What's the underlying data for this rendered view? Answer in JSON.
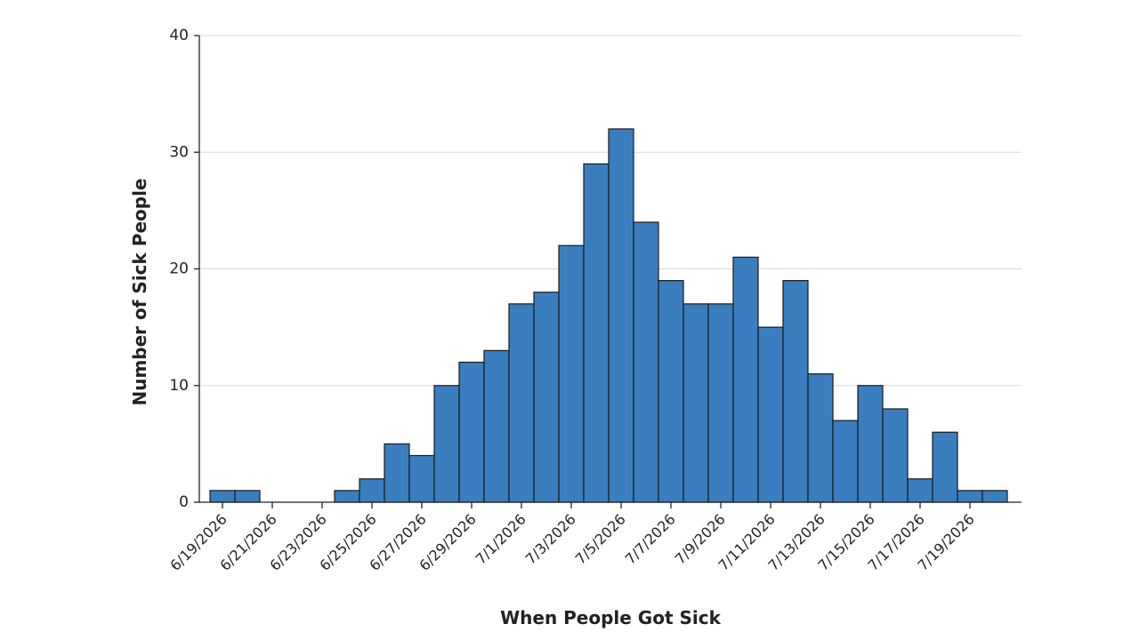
{
  "chart_data": {
    "type": "bar",
    "title": "",
    "xlabel": "When People Got Sick",
    "ylabel": "Number of Sick People",
    "ylim": [
      0,
      40
    ],
    "yticks": [
      0,
      10,
      20,
      30,
      40
    ],
    "grid": true,
    "bar_color": "#3a7ebf",
    "categories": [
      "6/19/2026",
      "6/20/2026",
      "6/21/2026",
      "6/22/2026",
      "6/23/2026",
      "6/24/2026",
      "6/25/2026",
      "6/26/2026",
      "6/27/2026",
      "6/28/2026",
      "6/29/2026",
      "6/30/2026",
      "7/1/2026",
      "7/2/2026",
      "7/3/2026",
      "7/4/2026",
      "7/5/2026",
      "7/6/2026",
      "7/7/2026",
      "7/8/2026",
      "7/9/2026",
      "7/10/2026",
      "7/11/2026",
      "7/12/2026",
      "7/13/2026",
      "7/14/2026",
      "7/15/2026",
      "7/16/2026",
      "7/17/2026",
      "7/18/2026",
      "7/19/2026",
      "7/20/2026"
    ],
    "values": [
      1,
      1,
      0,
      0,
      0,
      1,
      2,
      5,
      4,
      10,
      12,
      13,
      17,
      18,
      22,
      29,
      32,
      24,
      19,
      17,
      17,
      21,
      15,
      19,
      11,
      7,
      10,
      8,
      2,
      6,
      1,
      1
    ],
    "xtick_labels": [
      "6/19/2026",
      "6/21/2026",
      "6/23/2026",
      "6/25/2026",
      "6/27/2026",
      "6/29/2026",
      "7/1/2026",
      "7/3/2026",
      "7/5/2026",
      "7/7/2026",
      "7/9/2026",
      "7/11/2026",
      "7/13/2026",
      "7/15/2026",
      "7/17/2026",
      "7/19/2026"
    ]
  }
}
